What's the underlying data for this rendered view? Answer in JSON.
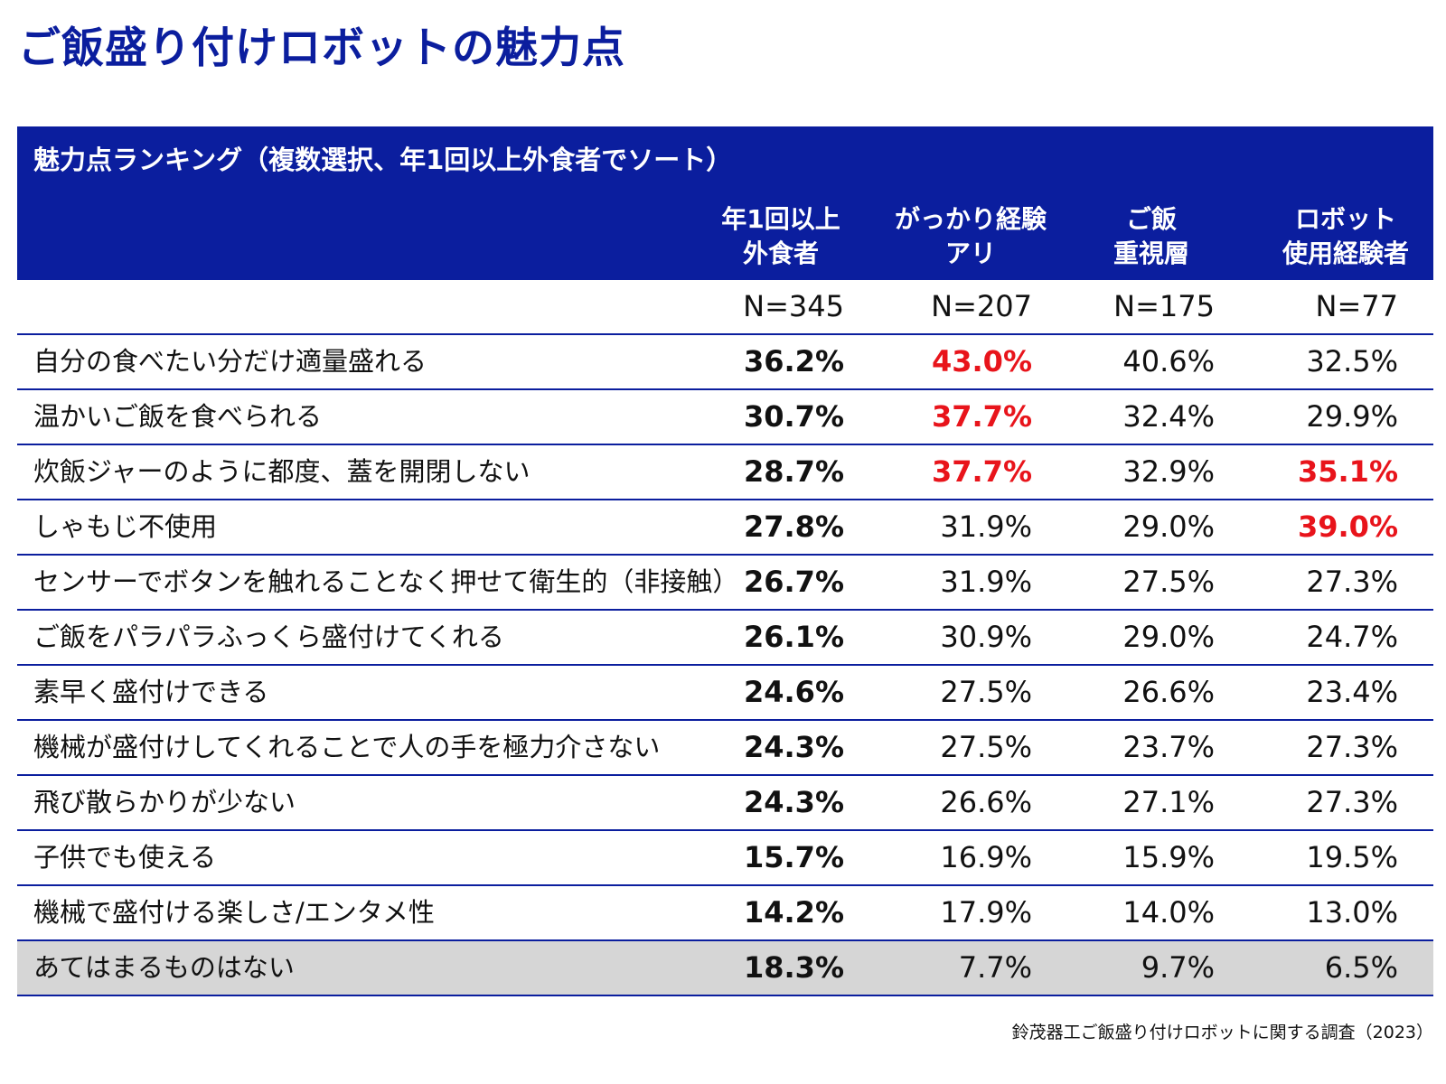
{
  "page": {
    "title": "ご飯盛り付けロボットの魅力点",
    "source_note": "鈴茂器工ご飯盛り付けロボットに関する調査（2023）"
  },
  "colors": {
    "brand_blue": "#0B1E9E",
    "highlight_red": "#E8141B",
    "shaded_row": "#D6D6D6"
  },
  "chart_data": {
    "type": "table",
    "title": "魅力点ランキング（複数選択、年1回以上外食者でソート）",
    "columns": [
      {
        "line1": "年1回以上",
        "line2": "外食者",
        "n": "N=345"
      },
      {
        "line1": "がっかり経験",
        "line2": "アリ",
        "n": "N=207"
      },
      {
        "line1": "ご飯",
        "line2": "重視層",
        "n": "N=175"
      },
      {
        "line1": "ロボット",
        "line2": "使用経験者",
        "n": "N=77"
      }
    ],
    "rows": [
      {
        "label": "自分の食べたい分だけ適量盛れる",
        "values": [
          "36.2%",
          "43.0%",
          "40.6%",
          "32.5%"
        ],
        "highlight": [
          false,
          true,
          false,
          false
        ],
        "shaded": false
      },
      {
        "label": "温かいご飯を食べられる",
        "values": [
          "30.7%",
          "37.7%",
          "32.4%",
          "29.9%"
        ],
        "highlight": [
          false,
          true,
          false,
          false
        ],
        "shaded": false
      },
      {
        "label": "炊飯ジャーのように都度、蓋を開閉しない",
        "values": [
          "28.7%",
          "37.7%",
          "32.9%",
          "35.1%"
        ],
        "highlight": [
          false,
          true,
          false,
          true
        ],
        "shaded": false
      },
      {
        "label": "しゃもじ不使用",
        "values": [
          "27.8%",
          "31.9%",
          "29.0%",
          "39.0%"
        ],
        "highlight": [
          false,
          false,
          false,
          true
        ],
        "shaded": false
      },
      {
        "label": "センサーでボタンを触れることなく押せて衛生的（非接触）",
        "values": [
          "26.7%",
          "31.9%",
          "27.5%",
          "27.3%"
        ],
        "highlight": [
          false,
          false,
          false,
          false
        ],
        "shaded": false
      },
      {
        "label": "ご飯をパラパラふっくら盛付けてくれる",
        "values": [
          "26.1%",
          "30.9%",
          "29.0%",
          "24.7%"
        ],
        "highlight": [
          false,
          false,
          false,
          false
        ],
        "shaded": false
      },
      {
        "label": "素早く盛付けできる",
        "values": [
          "24.6%",
          "27.5%",
          "26.6%",
          "23.4%"
        ],
        "highlight": [
          false,
          false,
          false,
          false
        ],
        "shaded": false
      },
      {
        "label": "機械が盛付けしてくれることで人の手を極力介さない",
        "values": [
          "24.3%",
          "27.5%",
          "23.7%",
          "27.3%"
        ],
        "highlight": [
          false,
          false,
          false,
          false
        ],
        "shaded": false
      },
      {
        "label": "飛び散らかりが少ない",
        "values": [
          "24.3%",
          "26.6%",
          "27.1%",
          "27.3%"
        ],
        "highlight": [
          false,
          false,
          false,
          false
        ],
        "shaded": false
      },
      {
        "label": "子供でも使える",
        "values": [
          "15.7%",
          "16.9%",
          "15.9%",
          "19.5%"
        ],
        "highlight": [
          false,
          false,
          false,
          false
        ],
        "shaded": false
      },
      {
        "label": "機械で盛付ける楽しさ/エンタメ性",
        "values": [
          "14.2%",
          "17.9%",
          "14.0%",
          "13.0%"
        ],
        "highlight": [
          false,
          false,
          false,
          false
        ],
        "shaded": false
      },
      {
        "label": "あてはまるものはない",
        "values": [
          "18.3%",
          "7.7%",
          "9.7%",
          "6.5%"
        ],
        "highlight": [
          false,
          false,
          false,
          false
        ],
        "shaded": true
      }
    ]
  }
}
